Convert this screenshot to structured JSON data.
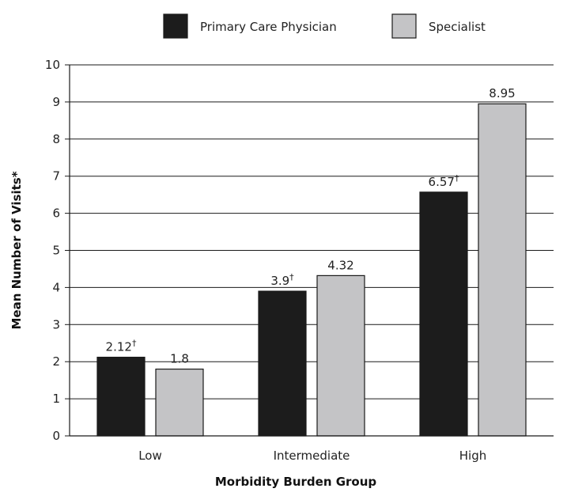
{
  "chart_data": {
    "type": "bar",
    "categories": [
      "Low",
      "Intermediate",
      "High"
    ],
    "series": [
      {
        "name": "Primary Care Physician",
        "values": [
          2.12,
          3.9,
          6.57
        ],
        "value_labels": [
          "2.12",
          "3.9",
          "6.57"
        ],
        "marker": "†",
        "color": "#1c1c1c"
      },
      {
        "name": "Specialist",
        "values": [
          1.8,
          4.32,
          8.95
        ],
        "value_labels": [
          "1.8",
          "4.32",
          "8.95"
        ],
        "marker": "",
        "color": "#c4c4c6"
      }
    ],
    "xlabel": "Morbidity Burden Group",
    "ylabel": "Mean Number of Visits*",
    "ylim": [
      0,
      10
    ],
    "yticks": [
      0,
      1,
      2,
      3,
      4,
      5,
      6,
      7,
      8,
      9,
      10
    ],
    "grid": true,
    "legend_position": "top"
  }
}
